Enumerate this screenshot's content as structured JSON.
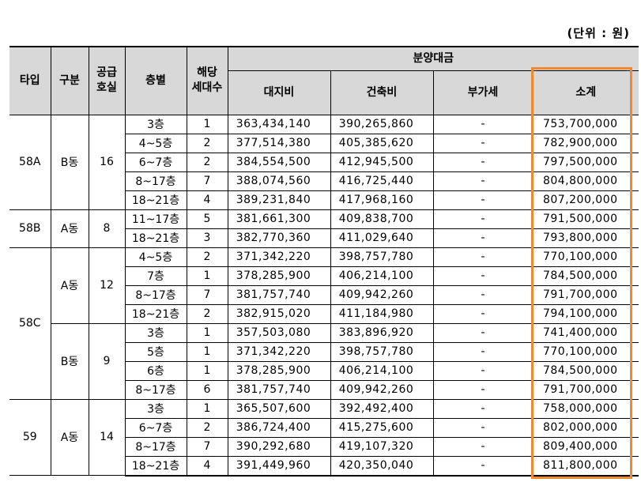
{
  "unit_label": "(단위 : 원)",
  "headers": {
    "type": "타입",
    "division": "구분",
    "supply_units_line1": "공급",
    "supply_units_line2": "호실",
    "floor": "층별",
    "households_line1": "해당",
    "households_line2": "세대수",
    "price_group": "분양대금",
    "land": "대지비",
    "building": "건축비",
    "vat": "부가세",
    "subtotal": "소계"
  },
  "rows": [
    {
      "type": "58A",
      "division": "B동",
      "units": "16",
      "floor": "3층",
      "count": "1",
      "land": "363,434,140",
      "building": "390,265,860",
      "vat": "-",
      "subtotal": "753,700,000"
    },
    {
      "floor": "4~5층",
      "count": "2",
      "land": "377,514,380",
      "building": "405,385,620",
      "vat": "-",
      "subtotal": "782,900,000"
    },
    {
      "floor": "6~7층",
      "count": "2",
      "land": "384,554,500",
      "building": "412,945,500",
      "vat": "-",
      "subtotal": "797,500,000"
    },
    {
      "floor": "8~17층",
      "count": "7",
      "land": "388,074,560",
      "building": "416,725,440",
      "vat": "-",
      "subtotal": "804,800,000"
    },
    {
      "floor": "18~21층",
      "count": "4",
      "land": "389,231,840",
      "building": "417,968,160",
      "vat": "-",
      "subtotal": "807,200,000"
    },
    {
      "type": "58B",
      "division": "A동",
      "units": "8",
      "floor": "11~17층",
      "count": "5",
      "land": "381,661,300",
      "building": "409,838,700",
      "vat": "-",
      "subtotal": "791,500,000"
    },
    {
      "floor": "18~21층",
      "count": "3",
      "land": "382,770,360",
      "building": "411,029,640",
      "vat": "-",
      "subtotal": "793,800,000"
    },
    {
      "type": "58C",
      "division": "A동",
      "units": "12",
      "floor": "4~5층",
      "count": "2",
      "land": "371,342,220",
      "building": "398,757,780",
      "vat": "-",
      "subtotal": "770,100,000"
    },
    {
      "floor": "7층",
      "count": "1",
      "land": "378,285,900",
      "building": "406,214,100",
      "vat": "-",
      "subtotal": "784,500,000"
    },
    {
      "floor": "8~17층",
      "count": "7",
      "land": "381,757,740",
      "building": "409,942,260",
      "vat": "-",
      "subtotal": "791,700,000"
    },
    {
      "floor": "18~21층",
      "count": "2",
      "land": "382,915,020",
      "building": "411,184,980",
      "vat": "-",
      "subtotal": "794,100,000"
    },
    {
      "division": "B동",
      "units": "9",
      "floor": "3층",
      "count": "1",
      "land": "357,503,080",
      "building": "383,896,920",
      "vat": "-",
      "subtotal": "741,400,000"
    },
    {
      "floor": "5층",
      "count": "1",
      "land": "371,342,220",
      "building": "398,757,780",
      "vat": "-",
      "subtotal": "770,100,000"
    },
    {
      "floor": "6층",
      "count": "1",
      "land": "378,285,900",
      "building": "406,214,100",
      "vat": "-",
      "subtotal": "784,500,000"
    },
    {
      "floor": "8~17층",
      "count": "6",
      "land": "381,757,740",
      "building": "409,942,260",
      "vat": "-",
      "subtotal": "791,700,000"
    },
    {
      "type": "59",
      "division": "A동",
      "units": "14",
      "floor": "3층",
      "count": "1",
      "land": "365,507,600",
      "building": "392,492,400",
      "vat": "-",
      "subtotal": "758,000,000"
    },
    {
      "floor": "6~7층",
      "count": "2",
      "land": "386,724,400",
      "building": "415,275,600",
      "vat": "-",
      "subtotal": "802,000,000"
    },
    {
      "floor": "8~17층",
      "count": "7",
      "land": "390,292,680",
      "building": "419,107,320",
      "vat": "-",
      "subtotal": "809,400,000"
    },
    {
      "floor": "18~21층",
      "count": "4",
      "land": "391,449,960",
      "building": "420,350,040",
      "vat": "-",
      "subtotal": "811,800,000"
    }
  ],
  "highlight_color": "#f08a30",
  "header_bg": "#d8d8d8"
}
